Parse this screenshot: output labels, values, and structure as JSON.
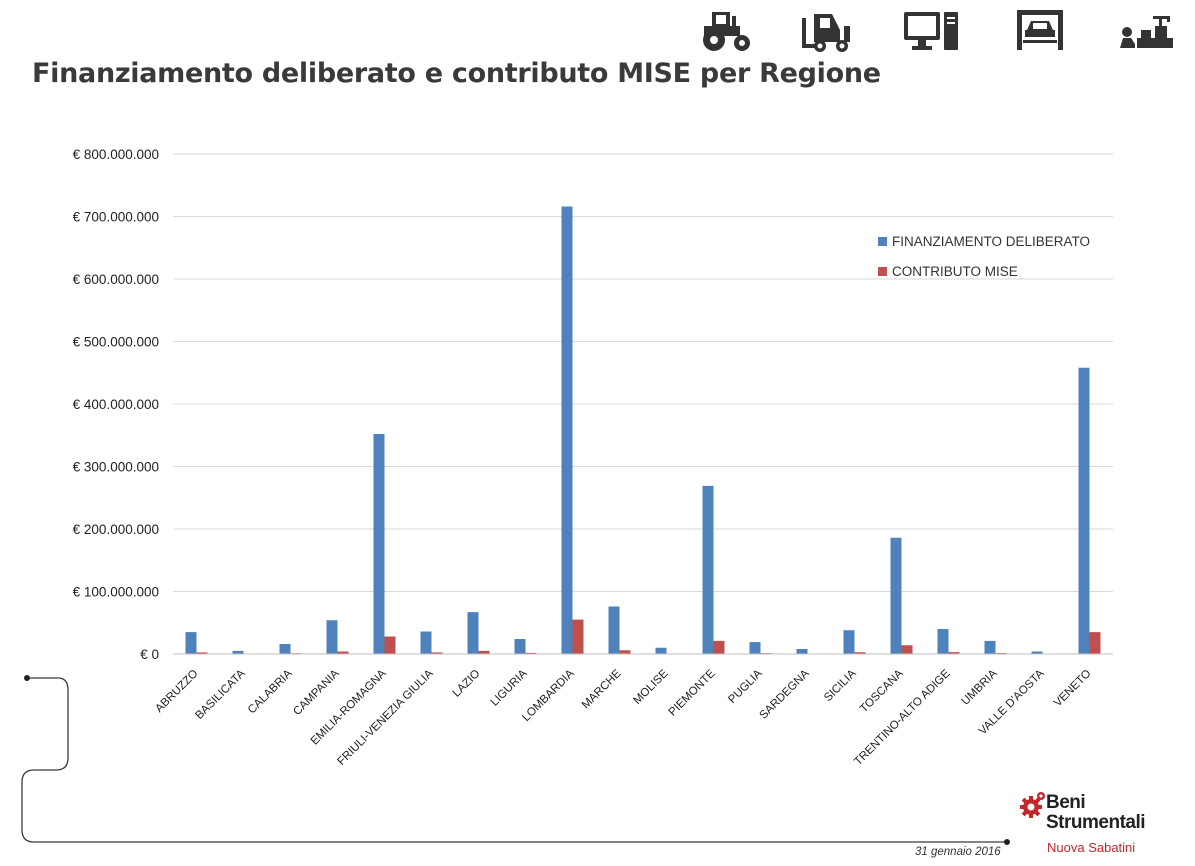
{
  "page": {
    "title": "Finanziamento deliberato e contributo MISE per Regione",
    "date": "31 gennaio 2016",
    "logo": {
      "line1": "Beni",
      "line2": "Strumentali",
      "line3": "Nuova Sabatini"
    },
    "icons": [
      "tractor-icon",
      "forklift-icon",
      "computer-icon",
      "car-lift-icon",
      "workshop-icon"
    ]
  },
  "colors": {
    "finanziamento": "#4f81bd",
    "contributo": "#c0504d",
    "grid": "#d9d9d9",
    "accent": "#c1272d"
  },
  "chart_data": {
    "type": "bar",
    "title": "",
    "xlabel": "",
    "ylabel": "",
    "ylim": [
      0,
      800000000
    ],
    "yticks": [
      0,
      100000000,
      200000000,
      300000000,
      400000000,
      500000000,
      600000000,
      700000000,
      800000000
    ],
    "ytick_labels": [
      "€ 0",
      "€ 100.000.000",
      "€ 200.000.000",
      "€ 300.000.000",
      "€ 400.000.000",
      "€ 500.000.000",
      "€ 600.000.000",
      "€ 700.000.000",
      "€ 800.000.000"
    ],
    "grid": true,
    "legend_position": "top-right",
    "categories": [
      "ABRUZZO",
      "BASILICATA",
      "CALABRIA",
      "CAMPANIA",
      "EMILIA-ROMAGNA",
      "FRIULI-VENEZIA GIULIA",
      "LAZIO",
      "LIGURIA",
      "LOMBARDIA",
      "MARCHE",
      "MOLISE",
      "PIEMONTE",
      "PUGLIA",
      "SARDEGNA",
      "SICILIA",
      "TOSCANA",
      "TRENTINO-ALTO ADIGE",
      "UMBRIA",
      "VALLE D'AOSTA",
      "VENETO"
    ],
    "series": [
      {
        "name": "FINANZIAMENTO DELIBERATO",
        "values": [
          35000000,
          5000000,
          16000000,
          54000000,
          352000000,
          36000000,
          67000000,
          24000000,
          716000000,
          76000000,
          10000000,
          269000000,
          19000000,
          8000000,
          38000000,
          186000000,
          40000000,
          21000000,
          4000000,
          458000000
        ]
      },
      {
        "name": "CONTRIBUTO MISE",
        "values": [
          2500000,
          300000,
          1200000,
          4000000,
          28000000,
          2500000,
          5000000,
          1800000,
          55000000,
          6000000,
          700000,
          21000000,
          1400000,
          600000,
          2800000,
          14000000,
          3000000,
          1500000,
          300000,
          35000000
        ]
      }
    ]
  }
}
